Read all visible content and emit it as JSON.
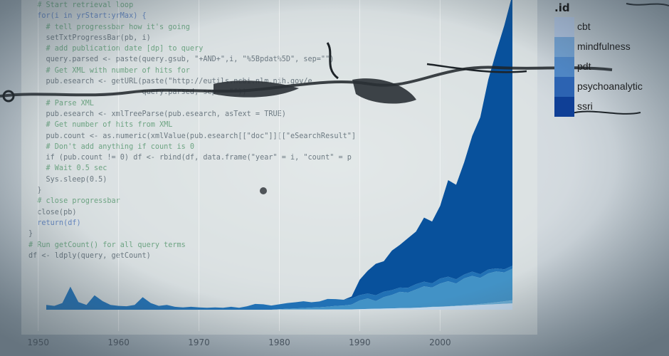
{
  "code_lines": [
    {
      "t": "  # Start retrieval loop",
      "cls": "c"
    },
    {
      "t": "  for(i in yrStart:yrMax) {",
      "cls": "k"
    },
    {
      "t": "    # tell progressbar how it's going",
      "cls": "c"
    },
    {
      "t": "    setTxtProgressBar(pb, i)",
      "cls": ""
    },
    {
      "t": "    # add publication date [dp] to query",
      "cls": "c"
    },
    {
      "t": "    query.parsed <- paste(query.gsub, \"+AND+\",i, \"%5Bpdat%5D\", sep=\"\")",
      "cls": ""
    },
    {
      "t": "    # Get XML with number of hits for",
      "cls": "c"
    },
    {
      "t": "    pub.esearch <- getURL(paste(\"http://eutils.ncbi.nlm.nih.gov/e",
      "cls": ""
    },
    {
      "t": "                          query.parsed, sep = \"\"))",
      "cls": ""
    },
    {
      "t": "    # Parse XML",
      "cls": "c"
    },
    {
      "t": "    pub.esearch <- xmlTreeParse(pub.esearch, asText = TRUE)",
      "cls": ""
    },
    {
      "t": "    # Get number of hits from XML",
      "cls": "c"
    },
    {
      "t": "    pub.count <- as.numeric(xmlValue(pub.esearch[[\"doc\"]][[\"eSearchResult\"]",
      "cls": ""
    },
    {
      "t": "    # Don't add anything if count is 0",
      "cls": "c"
    },
    {
      "t": "    if (pub.count != 0) df <- rbind(df, data.frame(\"year\" = i, \"count\" = p",
      "cls": ""
    },
    {
      "t": "    # Wait 0.5 sec",
      "cls": "c"
    },
    {
      "t": "    Sys.sleep(0.5)",
      "cls": ""
    },
    {
      "t": "  }",
      "cls": ""
    },
    {
      "t": "  # close progressbar",
      "cls": "c"
    },
    {
      "t": "  close(pb)",
      "cls": ""
    },
    {
      "t": "  return(df)",
      "cls": "k"
    },
    {
      "t": "}",
      "cls": ""
    },
    {
      "t": "# Run getCount() for all query terms",
      "cls": "c"
    },
    {
      "t": "df <- ldply(query, getCount)",
      "cls": ""
    }
  ],
  "chart_data": {
    "type": "area",
    "stacked": true,
    "x": [
      1951,
      1952,
      1953,
      1954,
      1955,
      1956,
      1957,
      1958,
      1959,
      1960,
      1961,
      1962,
      1963,
      1964,
      1965,
      1966,
      1967,
      1968,
      1969,
      1970,
      1971,
      1972,
      1973,
      1974,
      1975,
      1976,
      1977,
      1978,
      1979,
      1980,
      1981,
      1982,
      1983,
      1984,
      1985,
      1986,
      1987,
      1988,
      1989,
      1990,
      1991,
      1992,
      1993,
      1994,
      1995,
      1996,
      1997,
      1998,
      1999,
      2000,
      2001,
      2002,
      2003,
      2004,
      2005,
      2006,
      2007,
      2008,
      2009
    ],
    "xlim": [
      1949,
      2011
    ],
    "x_ticks": [
      "1950",
      "1960",
      "1970",
      "1980",
      "1990",
      "2000"
    ],
    "ylim": [
      0,
      2200
    ],
    "legend_title": ".id",
    "legend_position": "top-right",
    "series": [
      {
        "name": "cbt",
        "color": "#c6dbef",
        "values": [
          0,
          0,
          0,
          0,
          0,
          0,
          0,
          0,
          0,
          0,
          0,
          0,
          0,
          0,
          0,
          0,
          0,
          0,
          0,
          0,
          0,
          0,
          0,
          0,
          0,
          0,
          0,
          0,
          0,
          1,
          1,
          1,
          1,
          1,
          1,
          1,
          2,
          2,
          2,
          3,
          4,
          5,
          6,
          7,
          8,
          9,
          10,
          12,
          14,
          15,
          17,
          19,
          21,
          23,
          25,
          27,
          29,
          31,
          33
        ]
      },
      {
        "name": "mindfulness",
        "color": "#6baed6",
        "values": [
          0,
          0,
          0,
          0,
          0,
          0,
          0,
          0,
          0,
          0,
          0,
          0,
          0,
          0,
          0,
          0,
          0,
          0,
          0,
          0,
          0,
          0,
          0,
          0,
          0,
          0,
          0,
          0,
          0,
          0,
          0,
          0,
          0,
          0,
          0,
          0,
          0,
          0,
          0,
          0,
          0,
          0,
          0,
          0,
          0,
          0,
          0,
          0,
          1,
          1,
          1,
          2,
          2,
          3,
          5,
          7,
          10,
          13,
          16
        ]
      },
      {
        "name": "pdt",
        "color": "#4292c6",
        "values": [
          0,
          0,
          0,
          0,
          0,
          0,
          0,
          0,
          0,
          0,
          0,
          0,
          0,
          0,
          0,
          0,
          0,
          0,
          0,
          0,
          0,
          0,
          0,
          0,
          0,
          0,
          0,
          0,
          0,
          2,
          4,
          6,
          8,
          10,
          12,
          15,
          18,
          20,
          25,
          45,
          55,
          40,
          60,
          70,
          85,
          80,
          95,
          110,
          100,
          120,
          130,
          115,
          140,
          150,
          135,
          155,
          160,
          150,
          170
        ]
      },
      {
        "name": "psychoanalytic",
        "color": "#2171b5",
        "values": [
          25,
          20,
          35,
          120,
          40,
          25,
          75,
          45,
          25,
          20,
          18,
          25,
          65,
          35,
          20,
          25,
          15,
          12,
          15,
          12,
          10,
          12,
          10,
          15,
          10,
          18,
          30,
          28,
          22,
          25,
          30,
          32,
          35,
          28,
          30,
          40,
          35,
          30,
          32,
          28,
          25,
          30,
          28,
          25,
          22,
          25,
          28,
          24,
          22,
          26,
          24,
          22,
          20,
          22,
          20,
          24,
          22,
          20,
          22
        ]
      },
      {
        "name": "ssri",
        "color": "#08519c",
        "values": [
          0,
          0,
          0,
          0,
          0,
          0,
          0,
          0,
          0,
          0,
          0,
          0,
          0,
          0,
          0,
          0,
          0,
          0,
          0,
          0,
          0,
          0,
          0,
          0,
          0,
          0,
          0,
          0,
          0,
          0,
          0,
          0,
          0,
          0,
          0,
          0,
          0,
          0,
          10,
          80,
          120,
          180,
          180,
          250,
          280,
          330,
          360,
          450,
          430,
          520,
          700,
          680,
          820,
          1000,
          1150,
          1400,
          1600,
          1800,
          2000
        ]
      }
    ]
  }
}
